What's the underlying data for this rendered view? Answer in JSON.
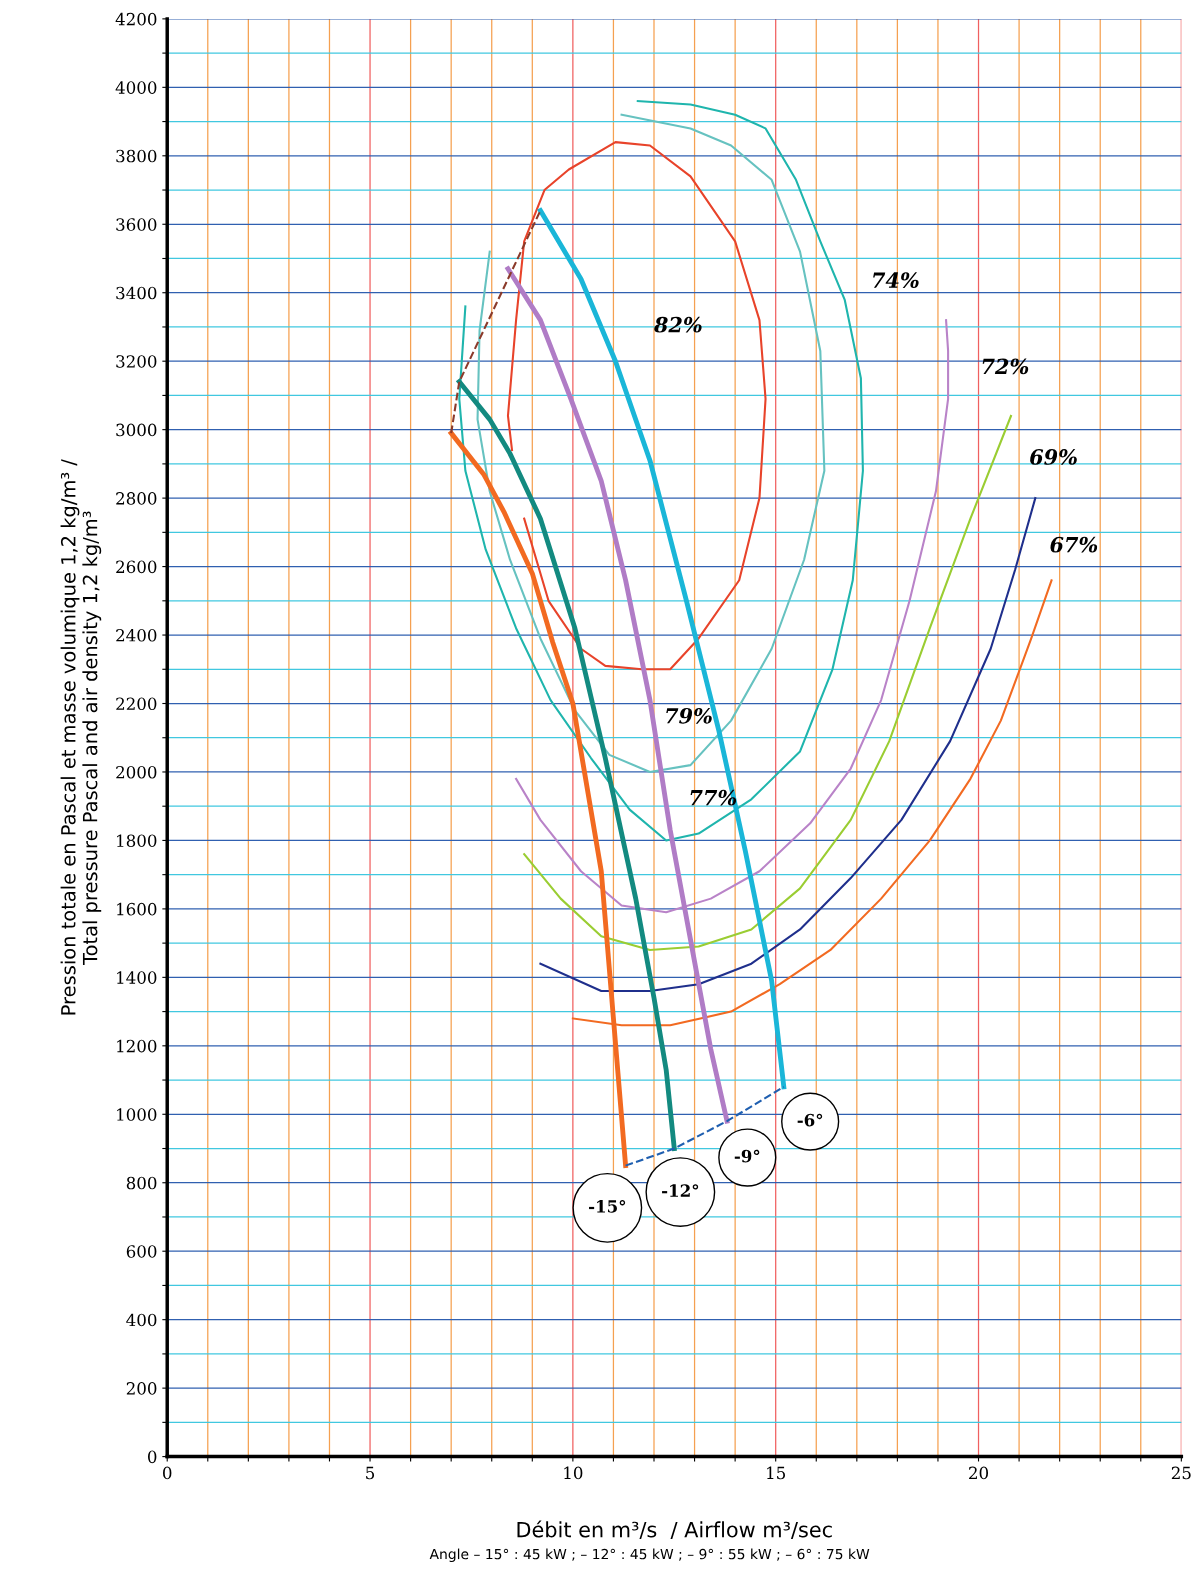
{
  "chart_data": {
    "type": "line",
    "xlabel": "Débit en m³/s  / Airflow m³/sec",
    "ylabel": "Pression totale en Pascal et masse volumique 1,2 kg/m³ /\nTotal pressure Pascal and air density 1,2 kg/m³",
    "xlim": [
      0,
      25
    ],
    "ylim": [
      0,
      4200
    ],
    "xticks": [
      0,
      {
        "value": 1,
        "label": null
      },
      {
        "value": 2,
        "label": null
      },
      {
        "value": 3,
        "label": null
      },
      {
        "value": 4,
        "label": null
      },
      5,
      {
        "value": 6,
        "label": null
      },
      {
        "value": 7,
        "label": null
      },
      {
        "value": 8,
        "label": null
      },
      {
        "value": 9,
        "label": null
      },
      10,
      {
        "value": 11,
        "label": null
      },
      {
        "value": 12,
        "label": null
      },
      {
        "value": 13,
        "label": null
      },
      {
        "value": 14,
        "label": null
      },
      15,
      {
        "value": 16,
        "label": null
      },
      {
        "value": 17,
        "label": null
      },
      {
        "value": 18,
        "label": null
      },
      {
        "value": 19,
        "label": null
      },
      20,
      {
        "value": 21,
        "label": null
      },
      {
        "value": 22,
        "label": null
      },
      {
        "value": 23,
        "label": null
      },
      {
        "value": 24,
        "label": null
      },
      25
    ],
    "yticks": [
      0,
      {
        "value": 100,
        "label": null
      },
      200,
      {
        "value": 300,
        "label": null
      },
      400,
      {
        "value": 500,
        "label": null
      },
      600,
      {
        "value": 700,
        "label": null
      },
      800,
      {
        "value": 900,
        "label": null
      },
      1000,
      {
        "value": 1100,
        "label": null
      },
      1200,
      {
        "value": 1300,
        "label": null
      },
      1400,
      {
        "value": 1500,
        "label": null
      },
      1600,
      {
        "value": 1700,
        "label": null
      },
      1800,
      {
        "value": 1900,
        "label": null
      },
      2000,
      {
        "value": 2100,
        "label": null
      },
      2200,
      {
        "value": 2300,
        "label": null
      },
      2400,
      {
        "value": 2500,
        "label": null
      },
      2600,
      {
        "value": 2700,
        "label": null
      },
      2800,
      {
        "value": 2900,
        "label": null
      },
      3000,
      {
        "value": 3100,
        "label": null
      },
      3200,
      {
        "value": 3300,
        "label": null
      },
      3400,
      {
        "value": 3500,
        "label": null
      },
      3600,
      {
        "value": 3700,
        "label": null
      },
      3800,
      {
        "value": 3900,
        "label": null
      },
      4000,
      {
        "value": 4100,
        "label": null
      },
      4200
    ],
    "grid": true,
    "marker": "none",
    "line_style": "solid",
    "legend": false,
    "series": [
      {
        "color": "#e8432a",
        "x": [
          8.5,
          8.4,
          8.6,
          8.8,
          9.3,
          9.9,
          11.05,
          11.9,
          12.9,
          14.0,
          14.6,
          14.75,
          14.6,
          14.1,
          13.1,
          12.4,
          11.7,
          10.8,
          10.2,
          9.4,
          8.8
        ],
        "values": [
          2940,
          3040,
          3320,
          3550,
          3700,
          3760,
          3840,
          3830,
          3740,
          3550,
          3320,
          3090,
          2800,
          2560,
          2390,
          2300,
          2300,
          2310,
          2360,
          2500,
          2740
        ]
      },
      {
        "color": "#66c2c0",
        "x": [
          7.95,
          7.7,
          7.65,
          7.95,
          8.45,
          9.2,
          10.05,
          10.9,
          11.9,
          12.9,
          13.9,
          14.9,
          15.7,
          16.2,
          16.1,
          15.6,
          14.9,
          13.9,
          12.9,
          11.2
        ],
        "values": [
          3520,
          3290,
          3030,
          2820,
          2620,
          2390,
          2180,
          2050,
          2000,
          2020,
          2150,
          2360,
          2620,
          2880,
          3230,
          3520,
          3730,
          3830,
          3880,
          3920
        ]
      },
      {
        "color": "#1fb5ad",
        "x": [
          7.35,
          7.2,
          7.35,
          7.85,
          8.6,
          9.45,
          10.45,
          11.4,
          12.3,
          13.1,
          14.4,
          15.6,
          16.4,
          16.9,
          17.15,
          17.1,
          16.7,
          16.1,
          15.5,
          14.75,
          14.0,
          12.9,
          11.6
        ],
        "values": [
          3360,
          3090,
          2880,
          2650,
          2420,
          2210,
          2040,
          1890,
          1800,
          1820,
          1920,
          2060,
          2300,
          2560,
          2880,
          3150,
          3380,
          3550,
          3730,
          3880,
          3920,
          3950,
          3960
        ]
      },
      {
        "color": "#b983c8",
        "x": [
          8.6,
          9.2,
          10.2,
          11.2,
          12.3,
          13.4,
          14.6,
          15.85,
          16.85,
          17.6,
          18.3,
          18.95,
          19.25,
          19.25,
          19.2
        ],
        "values": [
          1980,
          1860,
          1710,
          1610,
          1590,
          1630,
          1710,
          1850,
          2010,
          2210,
          2500,
          2820,
          3090,
          3230,
          3320
        ]
      },
      {
        "color": "#9acd32",
        "x": [
          8.8,
          9.7,
          10.7,
          11.9,
          13.1,
          14.4,
          15.6,
          16.85,
          17.8,
          18.8,
          19.8,
          20.8
        ],
        "values": [
          1760,
          1630,
          1520,
          1480,
          1490,
          1540,
          1660,
          1860,
          2090,
          2420,
          2740,
          3040
        ]
      },
      {
        "color": "#1f2f8c",
        "x": [
          9.2,
          10.7,
          11.9,
          13.1,
          14.4,
          15.6,
          16.85,
          18.1,
          19.3,
          20.3,
          20.9,
          21.4
        ],
        "values": [
          1440,
          1360,
          1360,
          1380,
          1440,
          1540,
          1690,
          1860,
          2090,
          2360,
          2590,
          2800
        ]
      },
      {
        "color": "#f26a21",
        "x": [
          10.0,
          11.2,
          12.4,
          13.9,
          15.1,
          16.35,
          17.6,
          18.8,
          19.8,
          20.55,
          21.3,
          21.8
        ],
        "values": [
          1280,
          1260,
          1260,
          1300,
          1380,
          1480,
          1630,
          1800,
          1980,
          2150,
          2390,
          2560
        ]
      },
      {
        "color": "#f26a21",
        "x": [
          7.0,
          7.8,
          8.3,
          9.0,
          9.5,
          10.0,
          10.7,
          11.3
        ],
        "values": [
          2990,
          2870,
          2760,
          2580,
          2380,
          2200,
          1710,
          850
        ]
      },
      {
        "color": "#138a80",
        "x": [
          7.2,
          7.95,
          8.45,
          9.2,
          10.05,
          10.8,
          11.55,
          12.0,
          12.3,
          12.5
        ],
        "values": [
          3140,
          3030,
          2930,
          2740,
          2420,
          2040,
          1630,
          1340,
          1130,
          900
        ]
      },
      {
        "color": "#b07cc6",
        "x": [
          8.4,
          9.2,
          9.95,
          10.7,
          11.3,
          11.9,
          12.4,
          12.9,
          13.4,
          13.8
        ],
        "values": [
          3470,
          3320,
          3090,
          2850,
          2560,
          2210,
          1830,
          1510,
          1190,
          980
        ]
      },
      {
        "color": "#1ab6d8",
        "x": [
          9.2,
          10.2,
          11.05,
          11.9,
          12.8,
          13.6,
          14.25,
          14.9,
          15.2
        ],
        "values": [
          3640,
          3440,
          3200,
          2910,
          2500,
          2120,
          1770,
          1390,
          1080
        ]
      },
      {
        "color": "#8b3a2a",
        "line_style": "dashed",
        "x": [
          7.0,
          7.2,
          9.2
        ],
        "values": [
          2990,
          3140,
          3640
        ]
      },
      {
        "color": "#1f5fb0",
        "line_style": "dashed",
        "x": [
          11.3,
          12.5,
          13.8,
          15.2
        ],
        "values": [
          850,
          900,
          980,
          1080
        ]
      }
    ],
    "annotations": [
      "82%",
      "79%",
      "77%",
      "74%",
      "72%",
      "69%",
      "67%",
      "-6°",
      "-9°",
      "-12°",
      "-15°",
      "Angle – 15° : 45 kW ; – 12° : 45 kW ; – 9° : 55 kW ; – 6° : 75 kW"
    ]
  }
}
